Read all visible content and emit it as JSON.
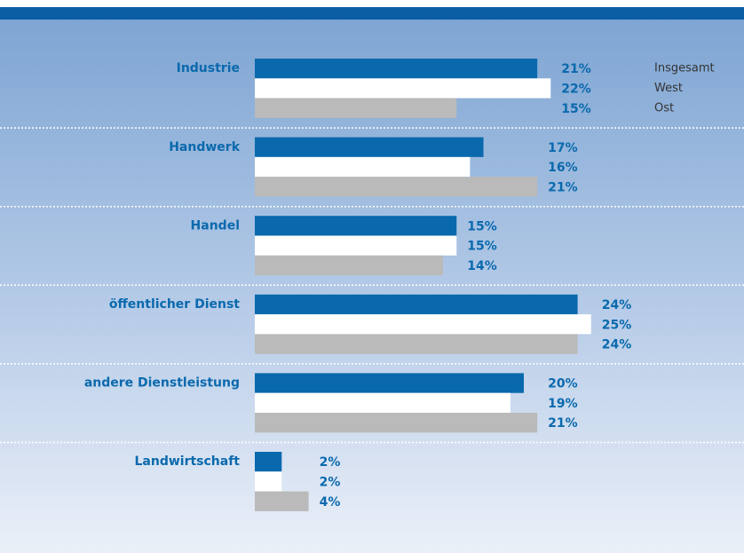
{
  "chart_data": {
    "type": "bar",
    "orientation": "horizontal",
    "categories": [
      "Industrie",
      "Handwerk",
      "Handel",
      "öffentlicher Dienst",
      "andere Dienstleistung",
      "Landwirtschaft"
    ],
    "series": [
      {
        "name": "Insgesamt",
        "color": "#0a69ad",
        "values": [
          21,
          17,
          15,
          24,
          20,
          2
        ],
        "value_labels": [
          "21%",
          "17%",
          "15%",
          "24%",
          "20%",
          "2%"
        ]
      },
      {
        "name": "West",
        "color": "#ffffff",
        "values": [
          22,
          16,
          15,
          25,
          19,
          2
        ],
        "value_labels": [
          "22%",
          "16%",
          "15%",
          "25%",
          "19%",
          "2%"
        ]
      },
      {
        "name": "Ost",
        "color": "#bababa",
        "values": [
          15,
          21,
          14,
          24,
          21,
          4
        ],
        "value_labels": [
          "15%",
          "21%",
          "14%",
          "24%",
          "21%",
          "4%"
        ]
      }
    ]
  }
}
